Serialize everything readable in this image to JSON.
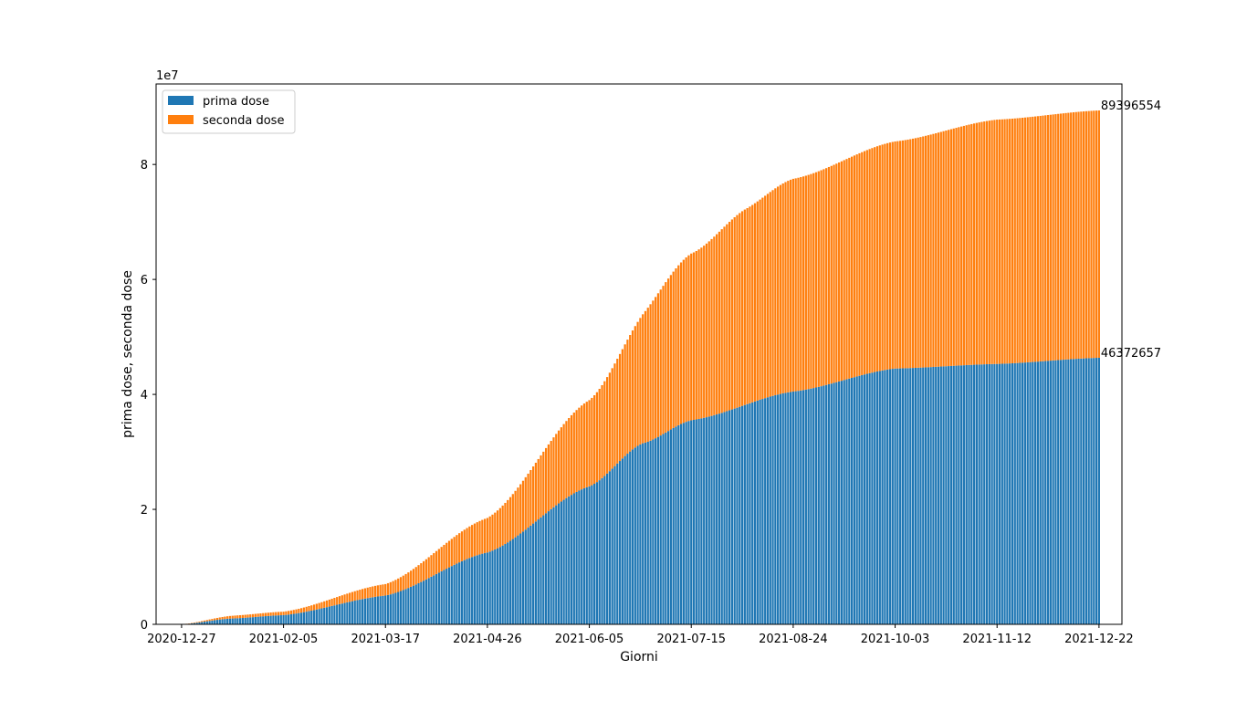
{
  "chart_data": {
    "type": "bar",
    "stacked": true,
    "title": "",
    "xlabel": "Giorni",
    "ylabel": "prima dose, seconda dose",
    "y_offset_label": "1e7",
    "y_scale_factor": 10000000,
    "ylim": [
      0,
      94000000
    ],
    "xlim": [
      "2020-12-17",
      "2021-12-31"
    ],
    "x_range": [
      "2020-12-27",
      "2021-12-22"
    ],
    "x_ticks": [
      "2020-12-27",
      "2021-02-05",
      "2021-03-17",
      "2021-04-26",
      "2021-06-05",
      "2021-07-15",
      "2021-08-24",
      "2021-10-03",
      "2021-11-12",
      "2021-12-22"
    ],
    "y_ticks": [
      0,
      20000000,
      40000000,
      60000000,
      80000000
    ],
    "y_tick_labels": [
      "0",
      "2",
      "4",
      "6",
      "8"
    ],
    "legend": {
      "position": "top-left",
      "entries": [
        "prima dose",
        "seconda dose"
      ]
    },
    "grid": false,
    "series": [
      {
        "name": "prima dose",
        "color": "#1f77b4",
        "anchor_points": [
          [
            "2020-12-27",
            0
          ],
          [
            "2021-01-15",
            1000000
          ],
          [
            "2021-02-05",
            1600000
          ],
          [
            "2021-03-17",
            5000000
          ],
          [
            "2021-04-26",
            12500000
          ],
          [
            "2021-06-05",
            24000000
          ],
          [
            "2021-06-26",
            31500000
          ],
          [
            "2021-07-15",
            35500000
          ],
          [
            "2021-08-24",
            40500000
          ],
          [
            "2021-10-03",
            44500000
          ],
          [
            "2021-11-12",
            45300000
          ],
          [
            "2021-12-22",
            46372657
          ]
        ]
      },
      {
        "name": "seconda dose",
        "color": "#ff7f0e",
        "anchor_points": [
          [
            "2020-12-27",
            0
          ],
          [
            "2021-01-18",
            500000
          ],
          [
            "2021-02-05",
            600000
          ],
          [
            "2021-03-17",
            2000000
          ],
          [
            "2021-04-26",
            6000000
          ],
          [
            "2021-06-05",
            15000000
          ],
          [
            "2021-07-15",
            29000000
          ],
          [
            "2021-08-05",
            34000000
          ],
          [
            "2021-08-24",
            37000000
          ],
          [
            "2021-10-03",
            39500000
          ],
          [
            "2021-11-12",
            42500000
          ],
          [
            "2021-12-22",
            43023897
          ]
        ]
      }
    ],
    "annotations": [
      {
        "text": "89396554",
        "x": "2021-12-22",
        "y": 89396554
      },
      {
        "text": "46372657",
        "x": "2021-12-22",
        "y": 46372657
      }
    ]
  }
}
